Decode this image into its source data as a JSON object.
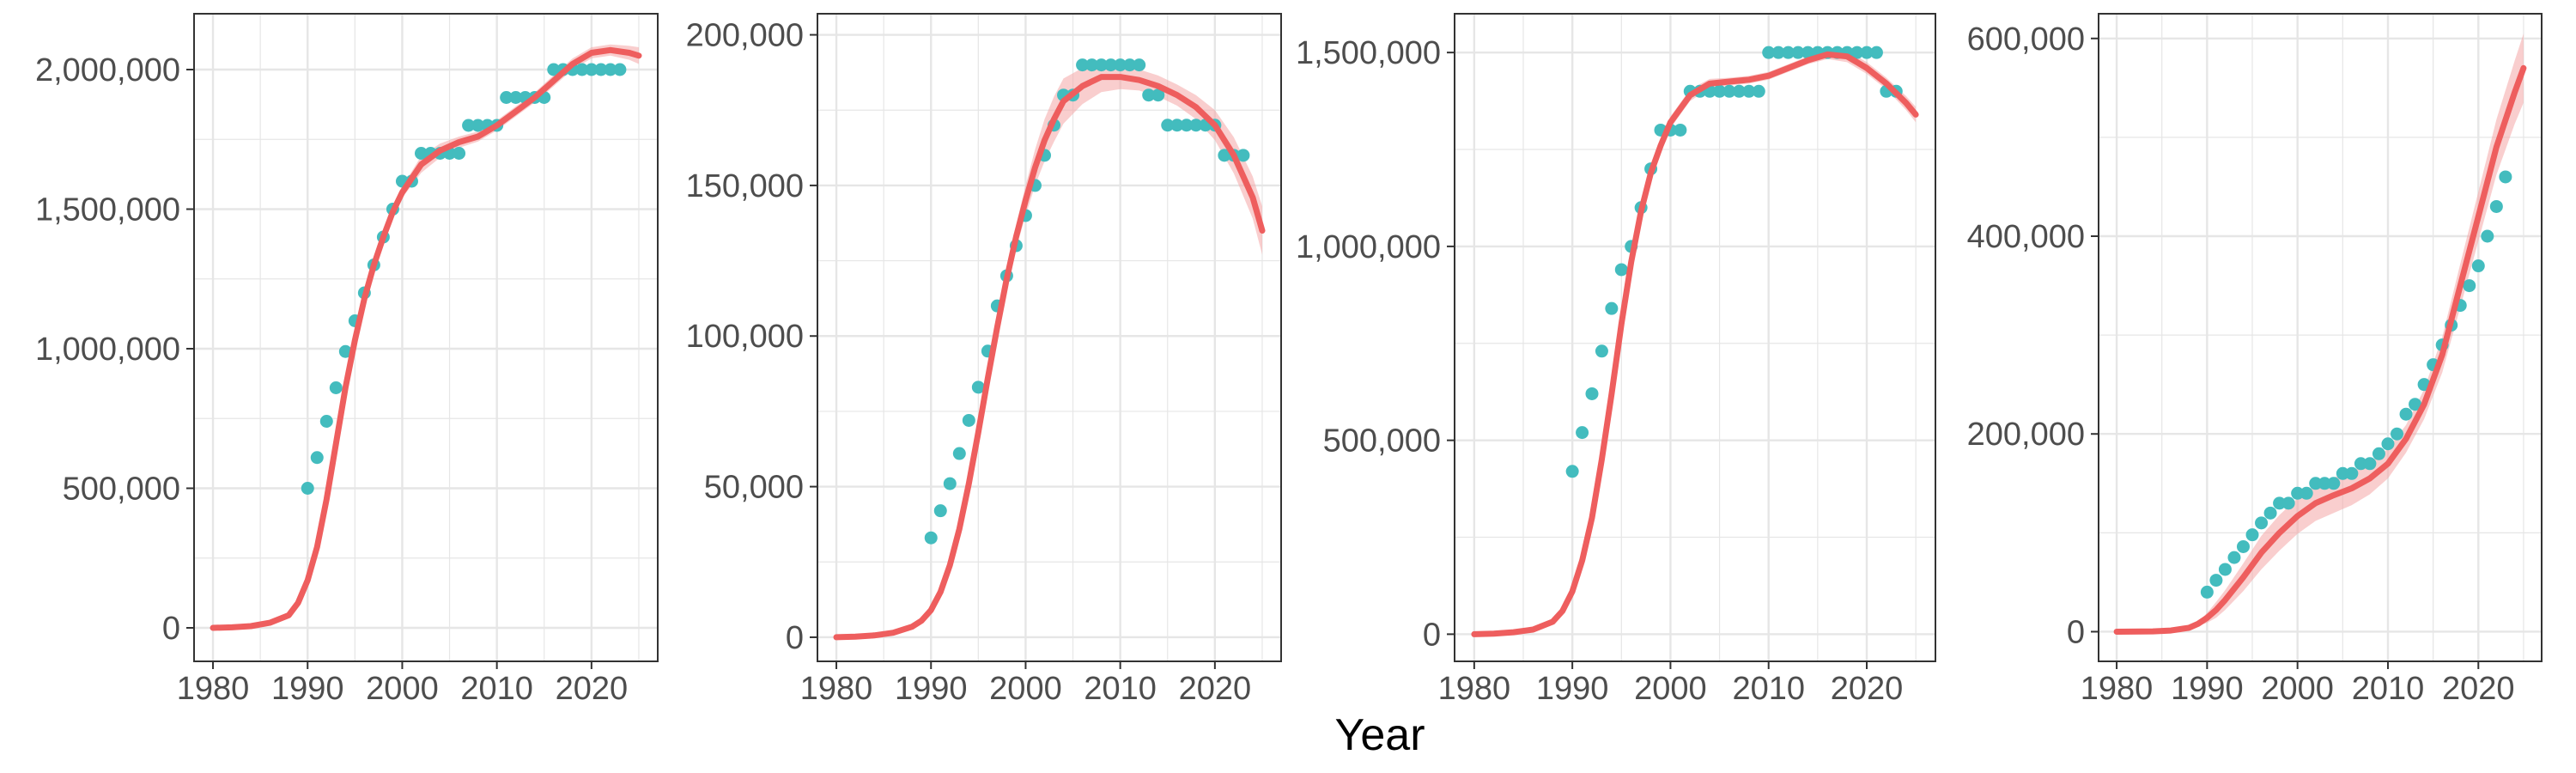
{
  "figure": {
    "xlabel": "Year",
    "colors": {
      "points": "#43BCBE",
      "fit_line": "#EE5E5E",
      "ribbon": "#F4A6A6",
      "grid": "#E6E6E6",
      "panel_border": "#333333",
      "tick_text": "#4D4D4D"
    }
  },
  "chart_data": [
    {
      "type": "scatter",
      "overlay": "smooth line with confidence ribbon",
      "title": "",
      "xlabel": "",
      "ylabel": "",
      "xlim": [
        1978,
        2027
      ],
      "ylim": [
        -120000,
        2200000
      ],
      "x_ticks": [
        1980,
        1990,
        2000,
        2010,
        2020
      ],
      "x_tick_labels": [
        "1980",
        "1990",
        "2000",
        "2010",
        "2020"
      ],
      "y_ticks": [
        0,
        500000,
        1000000,
        1500000,
        2000000
      ],
      "y_tick_labels": [
        "0",
        "500,000",
        "1,000,000",
        "1,500,000",
        "2,000,000"
      ],
      "grid": true,
      "points": {
        "x": [
          1990,
          1991,
          1992,
          1993,
          1994,
          1995,
          1996,
          1997,
          1998,
          1999,
          2000,
          2001,
          2002,
          2003,
          2004,
          2005,
          2006,
          2007,
          2008,
          2009,
          2010,
          2011,
          2012,
          2013,
          2014,
          2015,
          2016,
          2017,
          2018,
          2019,
          2020,
          2021,
          2022,
          2023
        ],
        "y": [
          500000,
          610000,
          740000,
          860000,
          990000,
          1100000,
          1200000,
          1300000,
          1400000,
          1500000,
          1600000,
          1600000,
          1700000,
          1700000,
          1700000,
          1700000,
          1700000,
          1800000,
          1800000,
          1800000,
          1800000,
          1900000,
          1900000,
          1900000,
          1900000,
          1900000,
          2000000,
          2000000,
          2000000,
          2000000,
          2000000,
          2000000,
          2000000,
          2000000
        ]
      },
      "fit": {
        "x": [
          1980,
          1982,
          1984,
          1986,
          1988,
          1989,
          1990,
          1991,
          1992,
          1993,
          1994,
          1995,
          1996,
          1997,
          1998,
          1999,
          2000,
          2002,
          2004,
          2006,
          2008,
          2010,
          2012,
          2014,
          2016,
          2018,
          2020,
          2022,
          2024,
          2025
        ],
        "y": [
          0,
          2000,
          6000,
          18000,
          45000,
          90000,
          170000,
          290000,
          460000,
          660000,
          860000,
          1030000,
          1180000,
          1300000,
          1400000,
          1490000,
          1560000,
          1660000,
          1710000,
          1740000,
          1760000,
          1800000,
          1850000,
          1900000,
          1960000,
          2020000,
          2060000,
          2070000,
          2060000,
          2050000
        ],
        "ci_half": [
          0,
          0,
          0,
          0,
          0,
          0,
          10000,
          10000,
          12000,
          14000,
          15000,
          15000,
          15000,
          15000,
          15000,
          18000,
          20000,
          30000,
          25000,
          20000,
          18000,
          18000,
          18000,
          18000,
          20000,
          20000,
          20000,
          20000,
          25000,
          30000
        ]
      }
    },
    {
      "type": "scatter",
      "overlay": "smooth line with confidence ribbon",
      "title": "",
      "xlabel": "",
      "ylabel": "",
      "xlim": [
        1978,
        2027
      ],
      "ylim": [
        -8000,
        207000
      ],
      "x_ticks": [
        1980,
        1990,
        2000,
        2010,
        2020
      ],
      "x_tick_labels": [
        "1980",
        "1990",
        "2000",
        "2010",
        "2020"
      ],
      "y_ticks": [
        0,
        50000,
        100000,
        150000,
        200000
      ],
      "y_tick_labels": [
        "0",
        "50,000",
        "100,000",
        "150,000",
        "200,000"
      ],
      "grid": true,
      "points": {
        "x": [
          1990,
          1991,
          1992,
          1993,
          1994,
          1995,
          1996,
          1997,
          1998,
          1999,
          2000,
          2001,
          2002,
          2003,
          2004,
          2005,
          2006,
          2007,
          2008,
          2009,
          2010,
          2011,
          2012,
          2013,
          2014,
          2015,
          2016,
          2017,
          2018,
          2019,
          2020,
          2021,
          2022,
          2023
        ],
        "y": [
          33000,
          42000,
          51000,
          61000,
          72000,
          83000,
          95000,
          110000,
          120000,
          130000,
          140000,
          150000,
          160000,
          170000,
          180000,
          180000,
          190000,
          190000,
          190000,
          190000,
          190000,
          190000,
          190000,
          180000,
          180000,
          170000,
          170000,
          170000,
          170000,
          170000,
          170000,
          160000,
          160000,
          160000
        ]
      },
      "fit": {
        "x": [
          1980,
          1982,
          1984,
          1986,
          1988,
          1989,
          1990,
          1991,
          1992,
          1993,
          1994,
          1995,
          1996,
          1997,
          1998,
          1999,
          2000,
          2001,
          2002,
          2003,
          2004,
          2006,
          2008,
          2010,
          2012,
          2014,
          2016,
          2018,
          2020,
          2022,
          2024,
          2025
        ],
        "y": [
          0,
          200,
          600,
          1500,
          3500,
          5500,
          9000,
          15000,
          24000,
          36000,
          51000,
          68000,
          86000,
          103000,
          119000,
          133000,
          145000,
          156000,
          165000,
          172000,
          178000,
          183000,
          186000,
          186000,
          185000,
          183000,
          180000,
          176000,
          170000,
          160000,
          146000,
          135000
        ],
        "ci_half": [
          0,
          0,
          0,
          0,
          0,
          200,
          500,
          800,
          1200,
          1600,
          2000,
          2400,
          2800,
          3000,
          3500,
          4000,
          5000,
          6000,
          7000,
          7500,
          7500,
          6000,
          5000,
          4000,
          3500,
          3500,
          3500,
          4000,
          5000,
          6000,
          7000,
          8000
        ]
      }
    },
    {
      "type": "scatter",
      "overlay": "smooth line with confidence ribbon",
      "title": "",
      "xlabel": "",
      "ylabel": "",
      "xlim": [
        1978,
        2027
      ],
      "ylim": [
        -70000,
        1600000
      ],
      "x_ticks": [
        1980,
        1990,
        2000,
        2010,
        2020
      ],
      "x_tick_labels": [
        "1980",
        "1990",
        "2000",
        "2010",
        "2020"
      ],
      "y_ticks": [
        0,
        500000,
        1000000,
        1500000
      ],
      "y_tick_labels": [
        "0",
        "500,000",
        "1,000,000",
        "1,500,000"
      ],
      "grid": true,
      "points": {
        "x": [
          1990,
          1991,
          1992,
          1993,
          1994,
          1995,
          1996,
          1997,
          1998,
          1999,
          2000,
          2001,
          2002,
          2003,
          2004,
          2005,
          2006,
          2007,
          2008,
          2009,
          2010,
          2011,
          2012,
          2013,
          2014,
          2015,
          2016,
          2017,
          2018,
          2019,
          2020,
          2021,
          2022,
          2023
        ],
        "y": [
          420000,
          520000,
          620000,
          730000,
          840000,
          940000,
          1000000,
          1100000,
          1200000,
          1300000,
          1300000,
          1300000,
          1400000,
          1400000,
          1400000,
          1400000,
          1400000,
          1400000,
          1400000,
          1400000,
          1500000,
          1500000,
          1500000,
          1500000,
          1500000,
          1500000,
          1500000,
          1500000,
          1500000,
          1500000,
          1500000,
          1500000,
          1400000,
          1400000
        ]
      },
      "fit": {
        "x": [
          1980,
          1982,
          1984,
          1986,
          1988,
          1989,
          1990,
          1991,
          1992,
          1993,
          1994,
          1995,
          1996,
          1997,
          1998,
          1999,
          2000,
          2002,
          2004,
          2006,
          2008,
          2010,
          2012,
          2014,
          2016,
          2018,
          2020,
          2022,
          2024,
          2025
        ],
        "y": [
          0,
          1500,
          5000,
          12000,
          32000,
          60000,
          110000,
          190000,
          300000,
          450000,
          620000,
          800000,
          960000,
          1090000,
          1190000,
          1260000,
          1320000,
          1390000,
          1420000,
          1425000,
          1430000,
          1440000,
          1460000,
          1480000,
          1495000,
          1490000,
          1460000,
          1420000,
          1370000,
          1340000
        ],
        "ci_half": [
          0,
          0,
          0,
          0,
          0,
          0,
          5000,
          8000,
          10000,
          12000,
          15000,
          15000,
          15000,
          15000,
          15000,
          15000,
          15000,
          15000,
          12000,
          10000,
          10000,
          10000,
          10000,
          10000,
          12000,
          15000,
          15000,
          15000,
          18000,
          20000
        ]
      }
    },
    {
      "type": "scatter",
      "overlay": "smooth line with confidence ribbon",
      "title": "",
      "xlabel": "",
      "ylabel": "",
      "xlim": [
        1978,
        2027
      ],
      "ylim": [
        -30000,
        625000
      ],
      "x_ticks": [
        1980,
        1990,
        2000,
        2010,
        2020
      ],
      "x_tick_labels": [
        "1980",
        "1990",
        "2000",
        "2010",
        "2020"
      ],
      "y_ticks": [
        0,
        200000,
        400000,
        600000
      ],
      "y_tick_labels": [
        "0",
        "200,000",
        "400,000",
        "600,000"
      ],
      "grid": true,
      "points": {
        "x": [
          1990,
          1991,
          1992,
          1993,
          1994,
          1995,
          1996,
          1997,
          1998,
          1999,
          2000,
          2001,
          2002,
          2003,
          2004,
          2005,
          2006,
          2007,
          2008,
          2009,
          2010,
          2011,
          2012,
          2013,
          2014,
          2015,
          2016,
          2017,
          2018,
          2019,
          2020,
          2021,
          2022,
          2023
        ],
        "y": [
          40000,
          52000,
          63000,
          75000,
          86000,
          98000,
          110000,
          120000,
          130000,
          130000,
          140000,
          140000,
          150000,
          150000,
          150000,
          160000,
          160000,
          170000,
          170000,
          180000,
          190000,
          200000,
          220000,
          230000,
          250000,
          270000,
          290000,
          310000,
          330000,
          350000,
          370000,
          400000,
          430000,
          460000
        ]
      },
      "fit": {
        "x": [
          1980,
          1984,
          1986,
          1988,
          1989,
          1990,
          1991,
          1992,
          1994,
          1996,
          1998,
          2000,
          2002,
          2004,
          2006,
          2008,
          2010,
          2012,
          2014,
          2016,
          2018,
          2020,
          2022,
          2024,
          2025
        ],
        "y": [
          0,
          300,
          1200,
          4000,
          8000,
          14000,
          22000,
          32000,
          55000,
          80000,
          100000,
          117000,
          130000,
          138000,
          145000,
          155000,
          170000,
          195000,
          230000,
          280000,
          350000,
          420000,
          490000,
          545000,
          570000
        ],
        "ci_half": [
          0,
          0,
          0,
          0,
          2000,
          5000,
          8000,
          10000,
          14000,
          17000,
          18000,
          18000,
          18000,
          18000,
          17000,
          16000,
          15000,
          14000,
          15000,
          18000,
          22000,
          25000,
          28000,
          32000,
          35000
        ]
      }
    }
  ]
}
